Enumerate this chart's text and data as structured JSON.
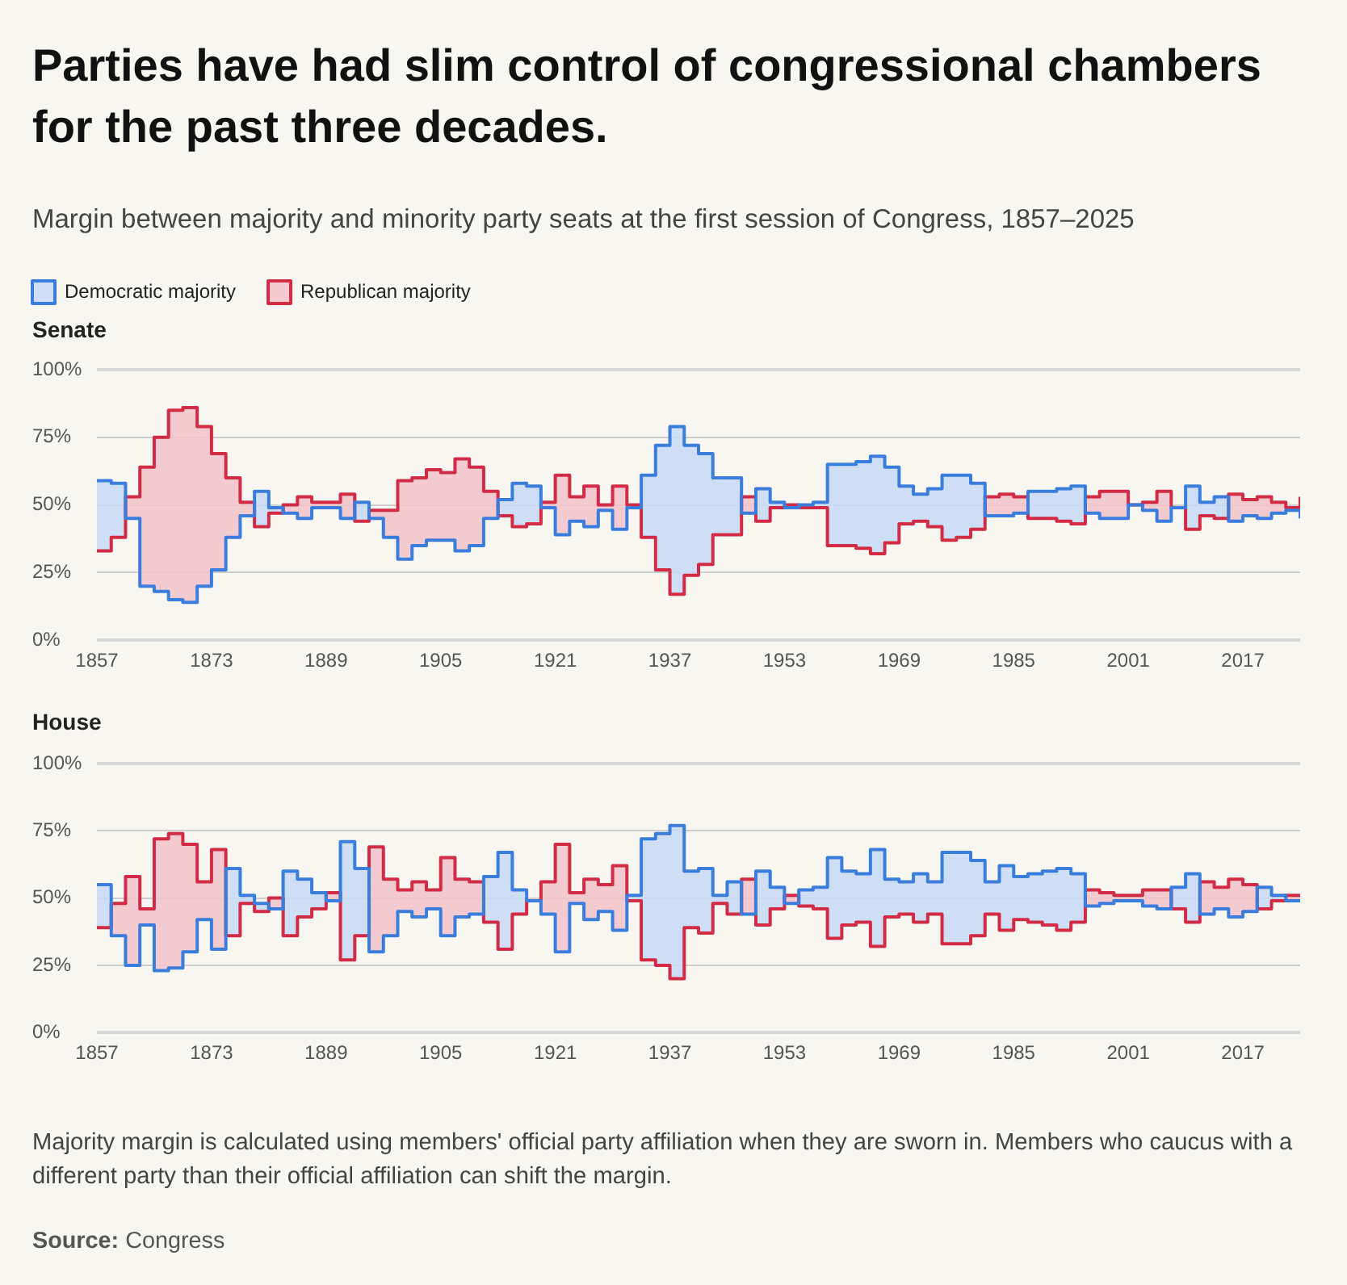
{
  "chart_data": [
    {
      "type": "other",
      "title": "Parties have had slim control of congressional chambers for the past three decades.",
      "subtitle": "Margin between majority and minority party seats at the first session of Congress, 1857–2025"
    },
    {
      "type": "step",
      "title": "Senate",
      "x": [
        1857,
        1859,
        1861,
        1863,
        1865,
        1867,
        1869,
        1871,
        1873,
        1875,
        1877,
        1879,
        1881,
        1883,
        1885,
        1887,
        1889,
        1891,
        1893,
        1895,
        1897,
        1899,
        1901,
        1903,
        1905,
        1907,
        1909,
        1911,
        1913,
        1915,
        1917,
        1919,
        1921,
        1923,
        1925,
        1927,
        1929,
        1931,
        1933,
        1935,
        1937,
        1939,
        1941,
        1943,
        1945,
        1947,
        1949,
        1951,
        1953,
        1955,
        1957,
        1959,
        1961,
        1963,
        1965,
        1967,
        1969,
        1971,
        1973,
        1975,
        1977,
        1979,
        1981,
        1983,
        1985,
        1987,
        1989,
        1991,
        1993,
        1995,
        1997,
        1999,
        2001,
        2003,
        2005,
        2007,
        2009,
        2011,
        2013,
        2015,
        2017,
        2019,
        2021,
        2023,
        2025
      ],
      "series": [
        {
          "name": "Democratic majority",
          "color": "#3b7ddd",
          "values": [
            59,
            58,
            45,
            20,
            18,
            15,
            14,
            20,
            26,
            38,
            46,
            55,
            49,
            47,
            45,
            49,
            49,
            45,
            51,
            45,
            38,
            30,
            35,
            37,
            37,
            33,
            35,
            45,
            52,
            58,
            57,
            49,
            39,
            44,
            42,
            48,
            41,
            49,
            61,
            72,
            79,
            72,
            69,
            60,
            60,
            47,
            56,
            51,
            49,
            50,
            51,
            65,
            65,
            66,
            68,
            64,
            57,
            54,
            56,
            61,
            61,
            58,
            46,
            46,
            47,
            55,
            55,
            56,
            57,
            47,
            45,
            45,
            50,
            48,
            44,
            49,
            57,
            51,
            53,
            44,
            46,
            45,
            47,
            48,
            45
          ],
          "lower": [
            33,
            38,
            45,
            20,
            18,
            15,
            14,
            20,
            26,
            38,
            46,
            42,
            47,
            47,
            45,
            49,
            49,
            45,
            44,
            45,
            38,
            30,
            35,
            37,
            37,
            33,
            35,
            45,
            46,
            42,
            43,
            49,
            39,
            44,
            42,
            48,
            41,
            49,
            38,
            26,
            17,
            24,
            28,
            39,
            39,
            47,
            44,
            49,
            49,
            49,
            49,
            35,
            35,
            34,
            32,
            36,
            43,
            44,
            42,
            37,
            38,
            41,
            46,
            46,
            47,
            45,
            45,
            44,
            43,
            47,
            45,
            45,
            50,
            48,
            44,
            49,
            41,
            46,
            45,
            44,
            46,
            45,
            47,
            48,
            45
          ],
          "upper": [
            59,
            58,
            45,
            20,
            18,
            15,
            14,
            20,
            26,
            38,
            46,
            55,
            49,
            47,
            45,
            49,
            49,
            45,
            51,
            45,
            38,
            30,
            35,
            37,
            37,
            33,
            35,
            45,
            52,
            58,
            57,
            49,
            39,
            44,
            42,
            48,
            41,
            49,
            61,
            72,
            79,
            72,
            69,
            60,
            60,
            47,
            56,
            51,
            49,
            50,
            51,
            65,
            65,
            66,
            68,
            64,
            57,
            54,
            56,
            61,
            61,
            58,
            46,
            46,
            47,
            55,
            55,
            56,
            57,
            47,
            45,
            45,
            50,
            48,
            44,
            49,
            57,
            51,
            53,
            44,
            46,
            45,
            47,
            48,
            45
          ]
        },
        {
          "name": "Republican majority",
          "color": "#d22b45",
          "values": [
            33,
            38,
            53,
            64,
            75,
            85,
            86,
            79,
            69,
            60,
            51,
            42,
            47,
            50,
            53,
            51,
            51,
            54,
            44,
            48,
            48,
            59,
            60,
            63,
            62,
            67,
            64,
            55,
            46,
            42,
            43,
            51,
            61,
            53,
            57,
            50,
            57,
            50,
            38,
            26,
            17,
            24,
            28,
            39,
            39,
            53,
            44,
            49,
            50,
            49,
            49,
            35,
            35,
            34,
            32,
            36,
            43,
            44,
            42,
            37,
            38,
            41,
            53,
            54,
            53,
            45,
            45,
            44,
            43,
            53,
            55,
            55,
            50,
            51,
            55,
            49,
            41,
            46,
            45,
            54,
            52,
            53,
            51,
            49,
            53
          ],
          "lower": [
            33,
            38,
            45,
            20,
            18,
            15,
            14,
            20,
            26,
            38,
            46,
            42,
            47,
            47,
            45,
            49,
            49,
            45,
            44,
            45,
            38,
            30,
            35,
            37,
            37,
            33,
            35,
            45,
            46,
            42,
            43,
            49,
            39,
            44,
            42,
            48,
            41,
            49,
            38,
            26,
            17,
            24,
            28,
            39,
            39,
            47,
            44,
            49,
            49,
            49,
            49,
            35,
            35,
            34,
            32,
            36,
            43,
            44,
            42,
            37,
            38,
            41,
            46,
            46,
            47,
            45,
            45,
            44,
            43,
            47,
            45,
            45,
            50,
            48,
            44,
            49,
            41,
            46,
            45,
            44,
            46,
            45,
            47,
            48,
            53
          ],
          "upper": [
            33,
            38,
            53,
            64,
            75,
            85,
            86,
            79,
            69,
            60,
            51,
            42,
            47,
            50,
            53,
            51,
            51,
            54,
            44,
            48,
            48,
            59,
            60,
            63,
            62,
            67,
            64,
            55,
            46,
            42,
            43,
            51,
            61,
            53,
            57,
            50,
            57,
            50,
            38,
            26,
            17,
            24,
            28,
            39,
            39,
            53,
            44,
            49,
            50,
            49,
            49,
            35,
            35,
            34,
            32,
            36,
            43,
            44,
            42,
            37,
            38,
            41,
            53,
            54,
            53,
            45,
            45,
            44,
            43,
            53,
            55,
            55,
            50,
            51,
            55,
            49,
            41,
            46,
            45,
            54,
            52,
            53,
            51,
            49,
            53
          ]
        }
      ],
      "xlim": [
        1857,
        2025
      ],
      "xticks": [
        1857,
        1873,
        1889,
        1905,
        1921,
        1937,
        1953,
        1969,
        1985,
        2001,
        2017
      ],
      "ylim": [
        0,
        100
      ],
      "yticks": [
        {
          "value": 0,
          "label": "0%"
        },
        {
          "value": 25,
          "label": "25%"
        },
        {
          "value": 50,
          "label": "50%"
        },
        {
          "value": 75,
          "label": "75%"
        },
        {
          "value": 100,
          "label": "100%"
        }
      ],
      "grid": "y",
      "legend": "top left",
      "marker": "none"
    },
    {
      "type": "step",
      "title": "House",
      "x": [
        1857,
        1859,
        1861,
        1863,
        1865,
        1867,
        1869,
        1871,
        1873,
        1875,
        1877,
        1879,
        1881,
        1883,
        1885,
        1887,
        1889,
        1891,
        1893,
        1895,
        1897,
        1899,
        1901,
        1903,
        1905,
        1907,
        1909,
        1911,
        1913,
        1915,
        1917,
        1919,
        1921,
        1923,
        1925,
        1927,
        1929,
        1931,
        1933,
        1935,
        1937,
        1939,
        1941,
        1943,
        1945,
        1947,
        1949,
        1951,
        1953,
        1955,
        1957,
        1959,
        1961,
        1963,
        1965,
        1967,
        1969,
        1971,
        1973,
        1975,
        1977,
        1979,
        1981,
        1983,
        1985,
        1987,
        1989,
        1991,
        1993,
        1995,
        1997,
        1999,
        2001,
        2003,
        2005,
        2007,
        2009,
        2011,
        2013,
        2015,
        2017,
        2019,
        2021,
        2023,
        2025
      ],
      "series": [
        {
          "color": "#3b7ddd",
          "values": [
            55,
            36,
            25,
            40,
            23,
            24,
            30,
            42,
            31,
            61,
            51,
            48,
            46,
            60,
            57,
            52,
            49,
            71,
            61,
            30,
            36,
            45,
            43,
            46,
            36,
            43,
            44,
            58,
            67,
            53,
            49,
            44,
            30,
            48,
            42,
            45,
            38,
            51,
            72,
            74,
            77,
            60,
            61,
            51,
            56,
            44,
            60,
            54,
            48,
            53,
            54,
            65,
            60,
            59,
            68,
            57,
            56,
            59,
            56,
            67,
            67,
            64,
            56,
            62,
            58,
            59,
            60,
            61,
            59,
            47,
            48,
            49,
            49,
            47,
            46,
            54,
            59,
            44,
            46,
            43,
            45,
            54,
            51,
            49,
            49
          ],
          "lower": [
            39,
            36,
            25,
            40,
            23,
            24,
            30,
            42,
            31,
            36,
            48,
            45,
            46,
            36,
            43,
            46,
            49,
            27,
            36,
            30,
            36,
            45,
            43,
            46,
            36,
            43,
            44,
            41,
            31,
            44,
            49,
            44,
            30,
            48,
            42,
            45,
            38,
            49,
            27,
            25,
            20,
            39,
            37,
            48,
            44,
            44,
            40,
            46,
            48,
            47,
            46,
            35,
            40,
            41,
            32,
            43,
            44,
            41,
            44,
            33,
            33,
            36,
            44,
            38,
            42,
            41,
            40,
            38,
            41,
            47,
            48,
            49,
            49,
            47,
            46,
            46,
            41,
            44,
            46,
            43,
            45,
            46,
            49,
            49,
            49
          ],
          "upper": [
            55,
            36,
            25,
            40,
            23,
            24,
            30,
            42,
            31,
            61,
            51,
            48,
            46,
            60,
            57,
            52,
            49,
            71,
            61,
            30,
            36,
            45,
            43,
            46,
            36,
            43,
            44,
            58,
            67,
            53,
            49,
            44,
            30,
            48,
            42,
            45,
            38,
            51,
            72,
            74,
            77,
            60,
            61,
            51,
            56,
            44,
            60,
            54,
            48,
            53,
            54,
            65,
            60,
            59,
            68,
            57,
            56,
            59,
            56,
            67,
            67,
            64,
            56,
            62,
            58,
            59,
            60,
            61,
            59,
            47,
            48,
            49,
            49,
            47,
            46,
            54,
            59,
            44,
            46,
            43,
            45,
            54,
            51,
            49,
            49
          ]
        },
        {
          "color": "#d22b45",
          "values": [
            39,
            48,
            58,
            46,
            72,
            74,
            70,
            56,
            68,
            36,
            48,
            45,
            50,
            36,
            43,
            46,
            52,
            27,
            36,
            69,
            57,
            53,
            56,
            53,
            65,
            57,
            56,
            41,
            31,
            44,
            49,
            56,
            70,
            52,
            57,
            55,
            62,
            49,
            27,
            25,
            20,
            39,
            37,
            48,
            44,
            57,
            40,
            46,
            51,
            47,
            46,
            35,
            40,
            41,
            32,
            43,
            44,
            41,
            44,
            33,
            33,
            36,
            44,
            38,
            42,
            41,
            40,
            38,
            41,
            53,
            52,
            51,
            51,
            53,
            53,
            46,
            41,
            56,
            54,
            57,
            55,
            46,
            49,
            51,
            51
          ],
          "lower": [
            39,
            36,
            25,
            40,
            23,
            24,
            30,
            42,
            31,
            36,
            48,
            45,
            46,
            36,
            43,
            46,
            49,
            27,
            36,
            30,
            36,
            45,
            43,
            46,
            36,
            43,
            44,
            41,
            31,
            44,
            49,
            44,
            30,
            48,
            42,
            45,
            38,
            49,
            27,
            25,
            20,
            39,
            37,
            48,
            44,
            44,
            40,
            46,
            48,
            47,
            46,
            35,
            40,
            41,
            32,
            43,
            44,
            41,
            44,
            33,
            33,
            36,
            44,
            38,
            42,
            41,
            40,
            38,
            41,
            47,
            48,
            49,
            49,
            47,
            46,
            46,
            41,
            44,
            46,
            43,
            45,
            46,
            49,
            49,
            51
          ],
          "upper": [
            39,
            48,
            58,
            46,
            72,
            74,
            70,
            56,
            68,
            36,
            48,
            45,
            50,
            36,
            43,
            46,
            52,
            27,
            36,
            69,
            57,
            53,
            56,
            53,
            65,
            57,
            56,
            41,
            31,
            44,
            49,
            56,
            70,
            52,
            57,
            55,
            62,
            49,
            27,
            25,
            20,
            39,
            37,
            48,
            44,
            57,
            40,
            46,
            51,
            47,
            46,
            35,
            40,
            41,
            32,
            43,
            44,
            41,
            44,
            33,
            33,
            36,
            44,
            38,
            42,
            41,
            40,
            38,
            41,
            53,
            52,
            51,
            51,
            53,
            53,
            46,
            41,
            56,
            54,
            57,
            55,
            46,
            49,
            51,
            51
          ]
        }
      ],
      "xlim": [
        1857,
        2025
      ],
      "xticks": [
        1857,
        1873,
        1889,
        1905,
        1921,
        1937,
        1953,
        1969,
        1985,
        2001,
        2017
      ],
      "ylim": [
        0,
        100
      ],
      "yticks": [
        {
          "value": 0,
          "label": "0%"
        },
        {
          "value": 25,
          "label": "25%"
        },
        {
          "value": 50,
          "label": "50%"
        },
        {
          "value": 75,
          "label": "75%"
        },
        {
          "value": 100,
          "label": "100%"
        }
      ],
      "grid": "y",
      "legend": false,
      "marker": "none",
      "annotations": [
        "Majority margin is calculated using members' official party affiliation when they are sworn in. Members who caucus with a different party than their official affiliation can shift the margin.",
        "Source: Congress"
      ]
    }
  ]
}
